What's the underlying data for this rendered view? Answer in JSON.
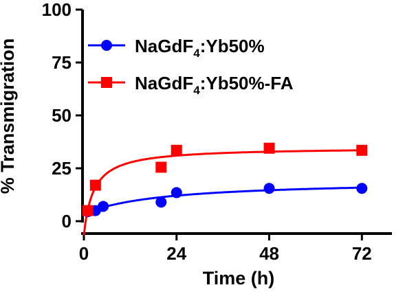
{
  "chart_data": {
    "type": "scatter",
    "xlabel": "Time (h)",
    "ylabel": "% Transmigration",
    "xlim": [
      0,
      78
    ],
    "ylim": [
      0,
      100
    ],
    "x_ticks": [
      "0",
      "24",
      "48",
      "72"
    ],
    "y_ticks": [
      "0",
      "25",
      "50",
      "75",
      "100"
    ],
    "grid": false,
    "legend_position": "top-left",
    "series": [
      {
        "name": "NaGdF4:Yb50%",
        "legend_parts": [
          "NaGdF",
          "4",
          ":Yb50%"
        ],
        "color": "#0000ff",
        "marker": "circle",
        "fit": "saturation curve",
        "x": [
          1,
          3,
          5,
          20,
          24,
          48,
          72
        ],
        "y": [
          4.5,
          5,
          7,
          9,
          13.5,
          15.5,
          15.5
        ]
      },
      {
        "name": "NaGdF4:Yb50%-FA",
        "legend_parts": [
          "NaGdF",
          "4",
          ":Yb50%-FA"
        ],
        "color": "#ff0000",
        "marker": "square",
        "fit": "saturation curve",
        "x": [
          1,
          3,
          20,
          24,
          48,
          72
        ],
        "y": [
          5,
          17,
          25.5,
          33.5,
          34.5,
          33.5
        ]
      }
    ]
  }
}
